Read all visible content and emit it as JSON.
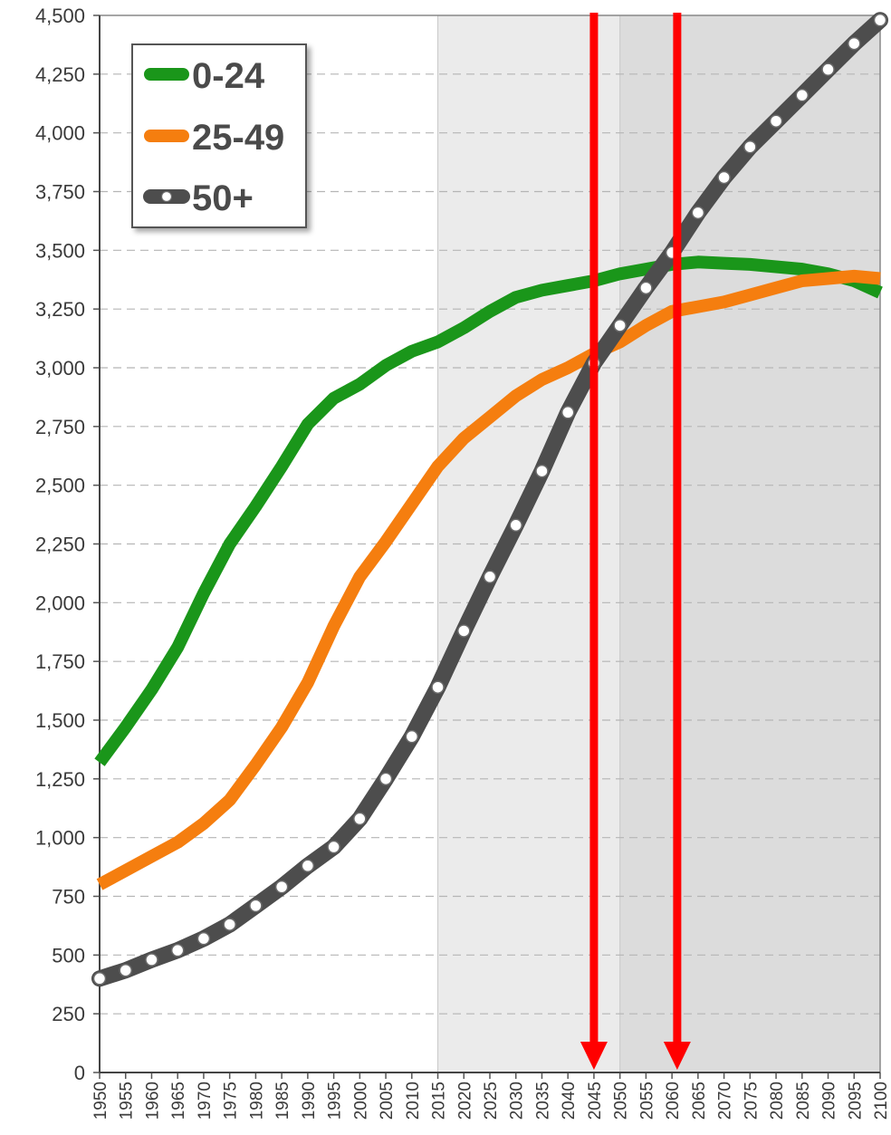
{
  "chart_data": {
    "type": "line",
    "title": "",
    "xlabel": "",
    "ylabel": "",
    "ylim": [
      0,
      4500
    ],
    "xlim": [
      1950,
      2100
    ],
    "grid": true,
    "legend_position": "top-left",
    "y_ticks": [
      "0",
      "250",
      "500",
      "750",
      "1,000",
      "1,250",
      "1,500",
      "1,750",
      "2,000",
      "2,250",
      "2,500",
      "2,750",
      "3,000",
      "3,250",
      "3,500",
      "3,750",
      "4,000",
      "4,250",
      "4,500"
    ],
    "x_ticks": [
      "1950",
      "1955",
      "1960",
      "1965",
      "1970",
      "1975",
      "1980",
      "1985",
      "1990",
      "1995",
      "2000",
      "2005",
      "2010",
      "2015",
      "2020",
      "2025",
      "2030",
      "2035",
      "2040",
      "2045",
      "2050",
      "2055",
      "2060",
      "2065",
      "2070",
      "2075",
      "2080",
      "2085",
      "2090",
      "2095",
      "2100"
    ],
    "shaded_periods": [
      {
        "from": 2015,
        "to": 2050,
        "color": "#ebebeb"
      },
      {
        "from": 2050,
        "to": 2100,
        "color": "#dcdcdc"
      }
    ],
    "markers": [
      {
        "x": 2045,
        "color": "#ff0000"
      },
      {
        "x": 2061,
        "color": "#ff0000"
      }
    ],
    "x": [
      1950,
      1955,
      1960,
      1965,
      1970,
      1975,
      1980,
      1985,
      1990,
      1995,
      2000,
      2005,
      2010,
      2015,
      2020,
      2025,
      2030,
      2035,
      2040,
      2045,
      2050,
      2055,
      2060,
      2065,
      2070,
      2075,
      2080,
      2085,
      2090,
      2095,
      2100
    ],
    "series": [
      {
        "name": "0-24",
        "color": "#1a961a",
        "style": "solid",
        "values": [
          1320,
          1470,
          1630,
          1810,
          2040,
          2250,
          2410,
          2580,
          2760,
          2870,
          2930,
          3010,
          3070,
          3110,
          3170,
          3240,
          3300,
          3330,
          3350,
          3370,
          3400,
          3420,
          3440,
          3450,
          3445,
          3440,
          3430,
          3420,
          3400,
          3370,
          3320
        ]
      },
      {
        "name": "25-49",
        "color": "#f57e0f",
        "style": "solid",
        "values": [
          800,
          860,
          920,
          980,
          1060,
          1160,
          1310,
          1470,
          1660,
          1900,
          2110,
          2260,
          2420,
          2580,
          2700,
          2790,
          2880,
          2950,
          3000,
          3060,
          3110,
          3180,
          3240,
          3260,
          3280,
          3310,
          3340,
          3370,
          3380,
          3390,
          3380
        ]
      },
      {
        "name": "50+",
        "color": "#4d4d4d",
        "style": "dotted-markers",
        "values": [
          400,
          435,
          480,
          520,
          570,
          630,
          710,
          790,
          880,
          960,
          1080,
          1250,
          1430,
          1640,
          1880,
          2110,
          2330,
          2560,
          2810,
          3020,
          3180,
          3340,
          3490,
          3660,
          3810,
          3940,
          4050,
          4160,
          4270,
          4380,
          4480
        ]
      }
    ]
  },
  "legend": {
    "items": [
      {
        "label": "0-24",
        "series": 0
      },
      {
        "label": "25-49",
        "series": 1
      },
      {
        "label": "50+",
        "series": 2
      }
    ]
  }
}
